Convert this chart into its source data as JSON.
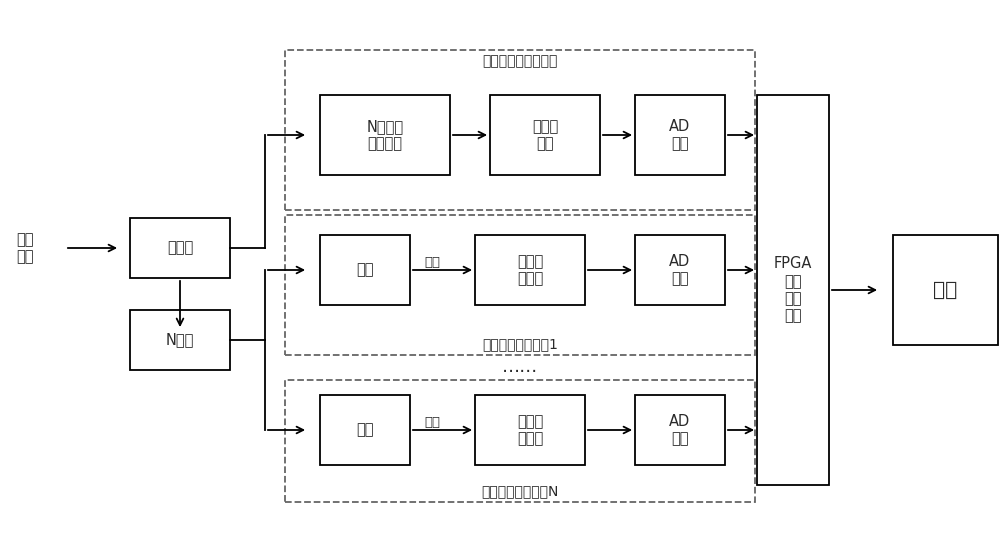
{
  "fig_width": 10.0,
  "fig_height": 5.41,
  "bg_color": "#ffffff",
  "box_facecolor": "#ffffff",
  "box_edgecolor": "#000000",
  "dashed_edgecolor": "#666666",
  "text_color": "#2a2a2a",
  "arrow_color": "#000000",
  "font_size": 10.5,
  "small_font_size": 9.5,
  "label_font_size": 10,
  "signal_input_label": "信号\n输入",
  "bifurcator_label": "二功分",
  "n_splitter_label": "N功分",
  "fpga_label": "FPGA\n（数\n据融\n合）",
  "output_label": "输出",
  "top_dashed_label": "全频段直采接收支路",
  "mid_dashed_label": "宽带变频接收支路1",
  "bot_dashed_label": "宽带变频接收支路N",
  "dots_label": "……",
  "box1_top_row": [
    "N路级联\n可调陷波",
    "全频段\n直采",
    "AD\n采集"
  ],
  "box1_mid_row": [
    "变频",
    "窄带定\n频陷波",
    "AD\n采集"
  ],
  "box1_bot_row": [
    "变频",
    "窄带定\n频陷波",
    "AD\n采集"
  ],
  "mid_freq_label": "中频",
  "bot_freq_label": "中频"
}
